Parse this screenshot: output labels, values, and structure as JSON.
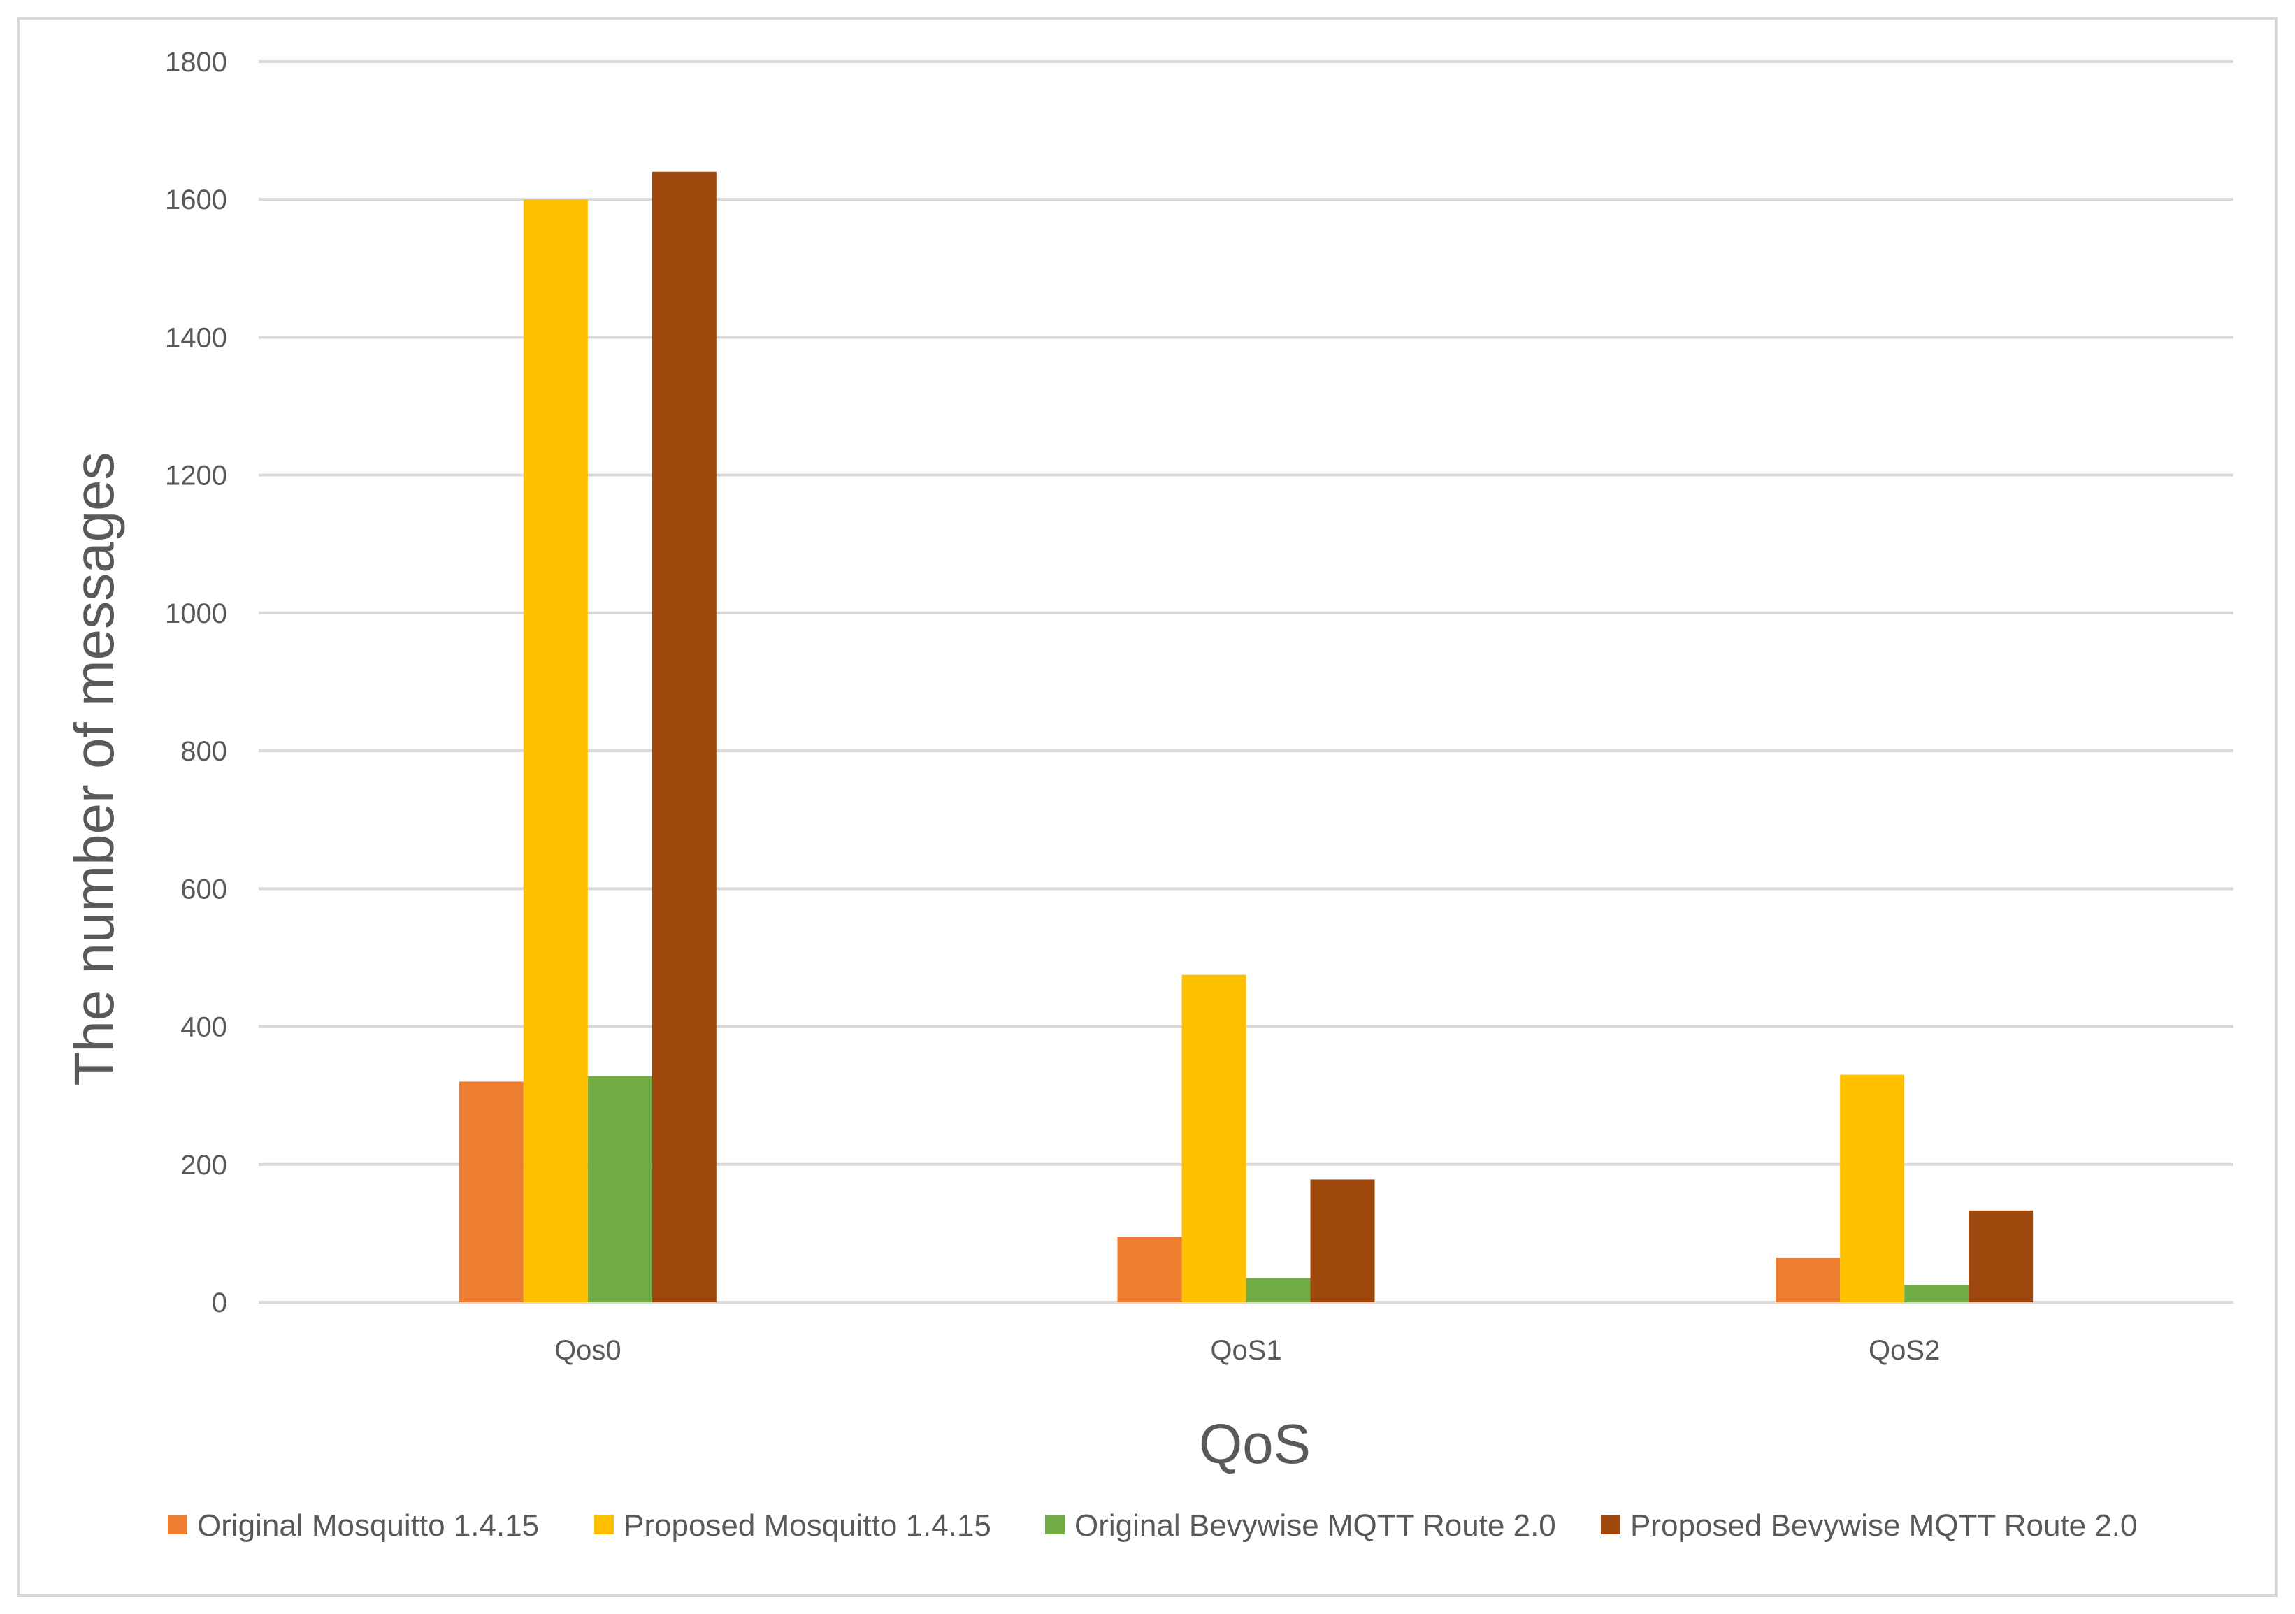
{
  "chart_data": {
    "type": "bar",
    "categories": [
      "Qos0",
      "QoS1",
      "QoS2"
    ],
    "series": [
      {
        "name": "Original Mosquitto 1.4.15",
        "values": [
          320,
          95,
          65
        ],
        "color": "#ED7D31"
      },
      {
        "name": "Proposed Mosquitto 1.4.15",
        "values": [
          1600,
          475,
          330
        ],
        "color": "#FFC000"
      },
      {
        "name": "Original Bevywise MQTT Route 2.0",
        "values": [
          328,
          35,
          25
        ],
        "color": "#70AD47"
      },
      {
        "name": "Proposed Bevywise MQTT Route 2.0",
        "values": [
          1640,
          178,
          133
        ],
        "color": "#9E480E"
      }
    ],
    "title": "",
    "xlabel": "QoS",
    "ylabel": "The number of messages",
    "ylim": [
      0,
      1800
    ],
    "yticks": [
      "0",
      "200",
      "400",
      "600",
      "800",
      "1000",
      "1200",
      "1400",
      "1600",
      "1800"
    ],
    "grid": true,
    "legend_position": "bottom",
    "gridline_color": "#D9D9D9",
    "border_color": "#D9D9D9"
  }
}
